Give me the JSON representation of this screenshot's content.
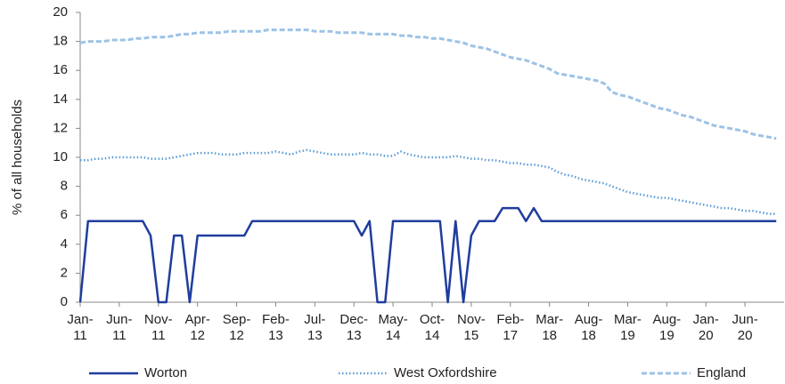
{
  "chart_data": {
    "type": "line",
    "ylabel": "% of all households",
    "categories": [
      "Jan-11",
      null,
      null,
      null,
      null,
      "Jun-11",
      null,
      null,
      null,
      null,
      "Nov-11",
      null,
      null,
      null,
      null,
      "Apr-12",
      null,
      null,
      null,
      null,
      "Sep-12",
      null,
      null,
      null,
      null,
      "Feb-13",
      null,
      null,
      null,
      null,
      "Jul-13",
      null,
      null,
      null,
      null,
      "Dec-13",
      null,
      null,
      null,
      null,
      "May-14",
      null,
      null,
      null,
      null,
      "Oct-14",
      null,
      null,
      null,
      null,
      "Nov-15",
      null,
      null,
      null,
      null,
      "Feb-17",
      null,
      null,
      null,
      null,
      "Mar-18",
      null,
      null,
      null,
      null,
      "Aug-18",
      null,
      null,
      null,
      null,
      "Mar-19",
      null,
      null,
      null,
      null,
      "Aug-19",
      null,
      null,
      null,
      null,
      "Jan-20",
      null,
      null,
      null,
      null,
      "Jun-20",
      null,
      null,
      null,
      null
    ],
    "series": [
      {
        "name": "Worton",
        "color": "#1f3d9e",
        "dash": "solid",
        "values": [
          0,
          5.6,
          5.6,
          5.6,
          5.6,
          5.6,
          5.6,
          5.6,
          5.6,
          4.6,
          0,
          0,
          4.6,
          4.6,
          0,
          4.6,
          4.6,
          4.6,
          4.6,
          4.6,
          4.6,
          4.6,
          5.6,
          5.6,
          5.6,
          5.6,
          5.6,
          5.6,
          5.6,
          5.6,
          5.6,
          5.6,
          5.6,
          5.6,
          5.6,
          5.6,
          4.6,
          5.6,
          0,
          0,
          5.6,
          5.6,
          5.6,
          5.6,
          5.6,
          5.6,
          5.6,
          0,
          5.6,
          0,
          4.6,
          5.6,
          5.6,
          5.6,
          6.5,
          6.5,
          6.5,
          5.6,
          6.5,
          5.6,
          5.6,
          5.6,
          5.6,
          5.6,
          5.6,
          5.6,
          5.6,
          5.6,
          5.6,
          5.6,
          5.6,
          5.6,
          5.6,
          5.6,
          5.6,
          5.6,
          5.6,
          5.6,
          5.6,
          5.6,
          5.6,
          5.6,
          5.6,
          5.6,
          5.6,
          5.6,
          5.6,
          5.6,
          5.6,
          5.6
        ]
      },
      {
        "name": "West Oxfordshire",
        "color": "#5b9bd5",
        "dash": "dotted",
        "values": [
          9.8,
          9.8,
          9.9,
          9.9,
          10.0,
          10.0,
          10.0,
          10.0,
          10.0,
          9.9,
          9.9,
          9.9,
          10.0,
          10.1,
          10.2,
          10.3,
          10.3,
          10.3,
          10.2,
          10.2,
          10.2,
          10.3,
          10.3,
          10.3,
          10.3,
          10.4,
          10.3,
          10.2,
          10.4,
          10.5,
          10.4,
          10.3,
          10.2,
          10.2,
          10.2,
          10.2,
          10.3,
          10.2,
          10.2,
          10.1,
          10.1,
          10.4,
          10.2,
          10.1,
          10.0,
          10.0,
          10.0,
          10.0,
          10.1,
          10.0,
          9.9,
          9.9,
          9.8,
          9.8,
          9.7,
          9.6,
          9.6,
          9.5,
          9.5,
          9.4,
          9.3,
          9.0,
          8.8,
          8.7,
          8.5,
          8.4,
          8.3,
          8.2,
          8.0,
          7.8,
          7.6,
          7.5,
          7.4,
          7.3,
          7.2,
          7.2,
          7.1,
          7.0,
          6.9,
          6.8,
          6.7,
          6.6,
          6.5,
          6.5,
          6.4,
          6.3,
          6.3,
          6.2,
          6.1,
          6.1
        ]
      },
      {
        "name": "England",
        "color": "#9dc3e6",
        "dash": "dashed",
        "values": [
          17.9,
          18.0,
          18.0,
          18.0,
          18.1,
          18.1,
          18.1,
          18.2,
          18.2,
          18.3,
          18.3,
          18.3,
          18.4,
          18.5,
          18.5,
          18.6,
          18.6,
          18.6,
          18.6,
          18.7,
          18.7,
          18.7,
          18.7,
          18.7,
          18.8,
          18.8,
          18.8,
          18.8,
          18.8,
          18.8,
          18.7,
          18.7,
          18.7,
          18.6,
          18.6,
          18.6,
          18.6,
          18.5,
          18.5,
          18.5,
          18.5,
          18.4,
          18.4,
          18.3,
          18.3,
          18.2,
          18.2,
          18.1,
          18.0,
          17.9,
          17.7,
          17.6,
          17.5,
          17.3,
          17.1,
          16.9,
          16.8,
          16.7,
          16.5,
          16.3,
          16.1,
          15.8,
          15.7,
          15.6,
          15.5,
          15.4,
          15.3,
          15.1,
          14.5,
          14.3,
          14.2,
          14.0,
          13.8,
          13.6,
          13.4,
          13.3,
          13.1,
          12.9,
          12.8,
          12.6,
          12.4,
          12.2,
          12.1,
          12.0,
          11.9,
          11.8,
          11.6,
          11.5,
          11.4,
          11.3
        ]
      }
    ],
    "ylim": [
      0,
      20
    ],
    "yticks": [
      0,
      2,
      4,
      6,
      8,
      10,
      12,
      14,
      16,
      18,
      20
    ],
    "grid": false,
    "legend": "bottom"
  }
}
